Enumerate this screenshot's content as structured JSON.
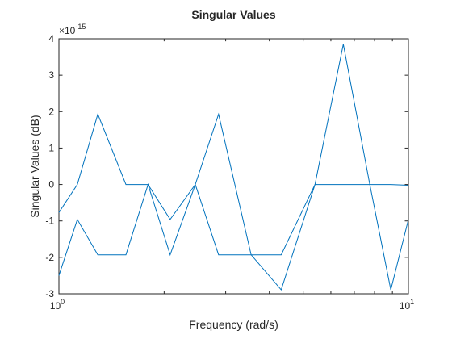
{
  "chart_data": {
    "type": "line",
    "title": "Singular Values",
    "xlabel": "Frequency (rad/s)",
    "ylabel": "Singular Values (dB)",
    "xscale": "log",
    "xlim": [
      1,
      10
    ],
    "ylim": [
      -3,
      4
    ],
    "y_multiplier": {
      "base": "×10",
      "exponent": "-15"
    },
    "x_ticks": [
      {
        "value": 1,
        "base": "10",
        "exponent": "0"
      },
      {
        "value": 10,
        "base": "10",
        "exponent": "1"
      }
    ],
    "y_ticks": [
      -3,
      -2,
      -1,
      0,
      1,
      2,
      3,
      4
    ],
    "y_tick_labels": [
      "-3",
      "-2",
      "-1",
      "0",
      "1",
      "2",
      "3",
      "4"
    ],
    "grid": false,
    "series_color": "#0072BD",
    "series": [
      {
        "x": [
          1.0,
          1.129,
          1.292,
          1.555,
          1.799,
          2.081,
          2.456,
          2.863,
          3.548,
          4.325,
          5.404,
          6.512,
          7.754,
          8.904,
          10.0
        ],
        "values": [
          -0.77,
          0.0,
          1.93,
          0.0,
          0.0,
          -0.96,
          0.0,
          1.93,
          -1.93,
          -2.89,
          0.0,
          3.85,
          0.0,
          0.0,
          -0.02
        ]
      },
      {
        "x": [
          1.0,
          1.129,
          1.292,
          1.555,
          1.799,
          2.081,
          2.456,
          2.863,
          3.548,
          4.325,
          5.404,
          6.512,
          7.754,
          8.904,
          10.0
        ],
        "values": [
          -2.5,
          -0.96,
          -1.93,
          -1.93,
          0.0,
          -1.93,
          0.0,
          -1.93,
          -1.93,
          -1.93,
          0.0,
          0.0,
          0.0,
          -2.89,
          -0.96
        ]
      }
    ]
  }
}
